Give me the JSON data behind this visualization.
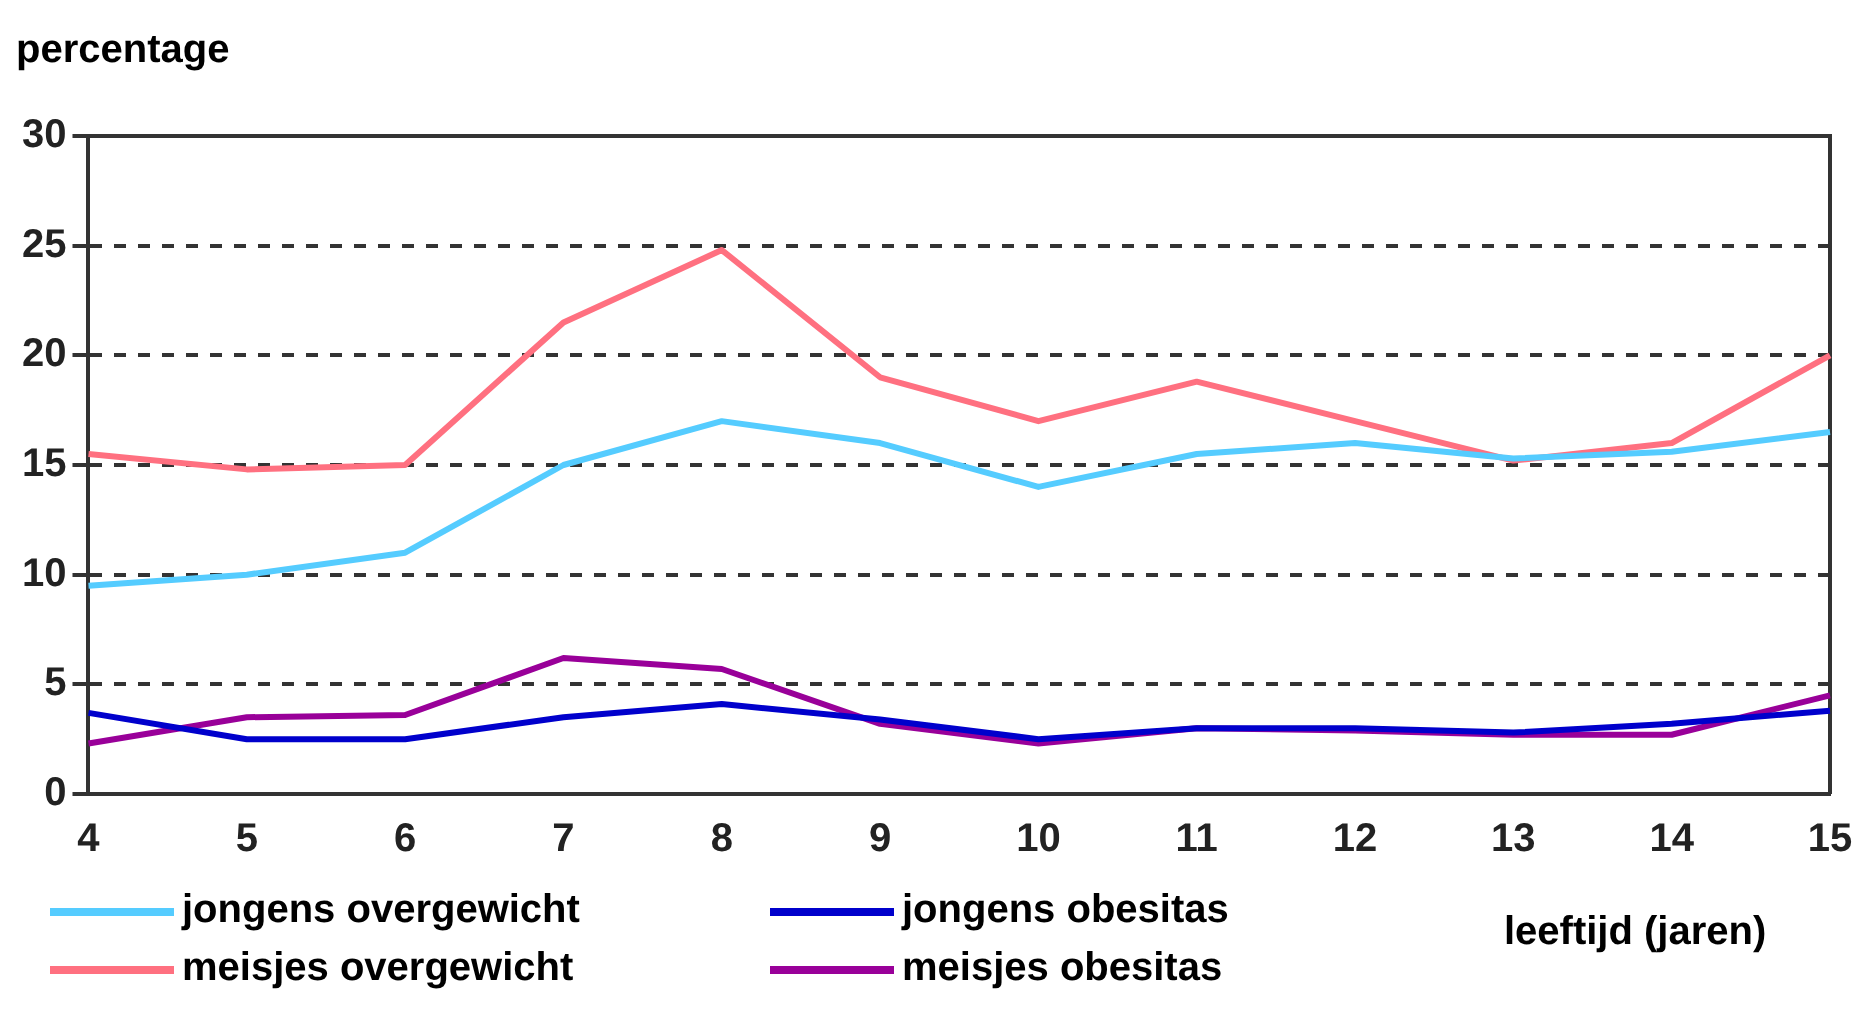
{
  "chart_data": {
    "type": "line",
    "ylabel": "percentage",
    "xlabel": "leeftijd (jaren)",
    "categories": [
      "4",
      "5",
      "6",
      "7",
      "8",
      "9",
      "10",
      "11",
      "12",
      "13",
      "14",
      "15"
    ],
    "ylim": [
      0,
      30
    ],
    "yticks": [
      0,
      5,
      10,
      15,
      20,
      25,
      30
    ],
    "grid": "y",
    "legend": "bottom",
    "marker": "none",
    "line_style": "solid",
    "series": [
      {
        "name": "jongens overgewicht",
        "color": "#55ccff",
        "values": [
          9.5,
          10,
          11,
          15,
          17,
          16,
          14,
          15.5,
          16,
          15.3,
          15.6,
          16.5
        ]
      },
      {
        "name": "jongens obesitas",
        "color": "#0000cc",
        "values": [
          3.7,
          2.5,
          2.5,
          3.5,
          4.1,
          3.4,
          2.5,
          3,
          3,
          2.8,
          3.2,
          3.8
        ]
      },
      {
        "name": "meisjes overgewicht",
        "color": "#ff7080",
        "values": [
          15.5,
          14.8,
          15,
          21.5,
          24.8,
          19,
          17,
          18.8,
          17,
          15.2,
          16,
          20
        ]
      },
      {
        "name": "meisjes obesitas",
        "color": "#990099",
        "values": [
          2.3,
          3.5,
          3.6,
          6.2,
          5.7,
          3.2,
          2.3,
          3,
          2.9,
          2.7,
          2.7,
          4.5
        ]
      }
    ]
  }
}
